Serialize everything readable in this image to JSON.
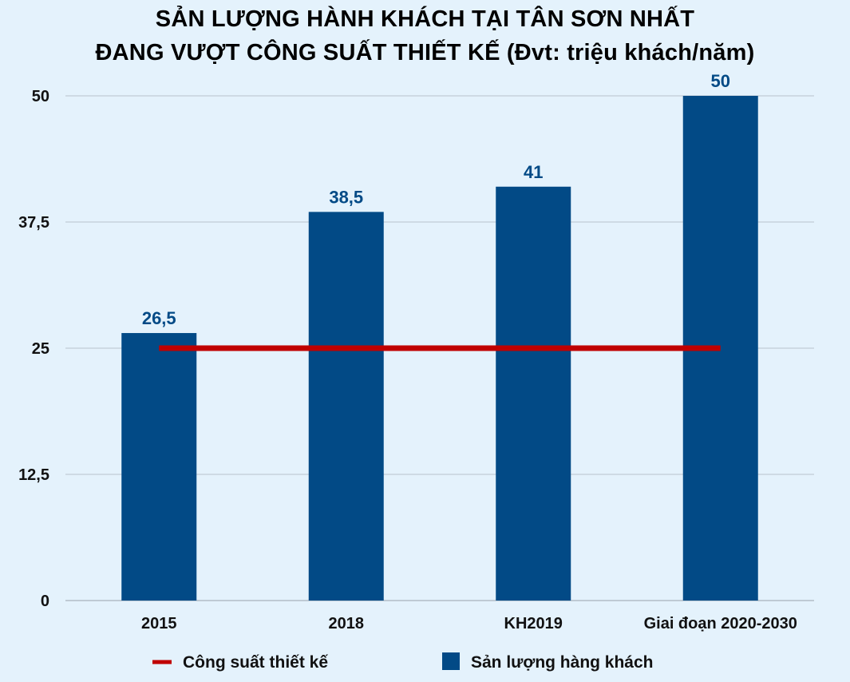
{
  "chart_data": {
    "type": "bar",
    "title_lines": [
      "SẢN LƯỢNG HÀNH KHÁCH TẠI TÂN SƠN NHẤT",
      "ĐANG VƯỢT CÔNG SUẤT THIẾT KẾ (Đvt: triệu khách/năm)"
    ],
    "categories": [
      "2015",
      "2018",
      "KH2019",
      "Giai đoạn 2020-2030"
    ],
    "series": [
      {
        "name": "Sản lượng hàng khách",
        "kind": "bar",
        "values": [
          26.5,
          38.5,
          41,
          50
        ],
        "value_labels": [
          "26,5",
          "38,5",
          "41",
          "50"
        ],
        "color": "#024a86"
      },
      {
        "name": "Công suất thiết kế",
        "kind": "line",
        "values": [
          25,
          25,
          25,
          25
        ],
        "color": "#c00000"
      }
    ],
    "ylim": [
      0,
      50
    ],
    "yticks": [
      {
        "value": 0,
        "label": "0"
      },
      {
        "value": 12.5,
        "label": "12,5"
      },
      {
        "value": 25,
        "label": "25"
      },
      {
        "value": 37.5,
        "label": "37,5"
      },
      {
        "value": 50,
        "label": "50"
      }
    ],
    "grid": true,
    "legend": {
      "placement": "bottom",
      "order": [
        "Công suất thiết kế",
        "Sản lượng hàng khách"
      ]
    },
    "colors": {
      "background": "#e4f2fc",
      "bar": "#024a86",
      "line": "#c00000",
      "grid": "#b9c3cc",
      "value_label": "#024a86"
    }
  }
}
